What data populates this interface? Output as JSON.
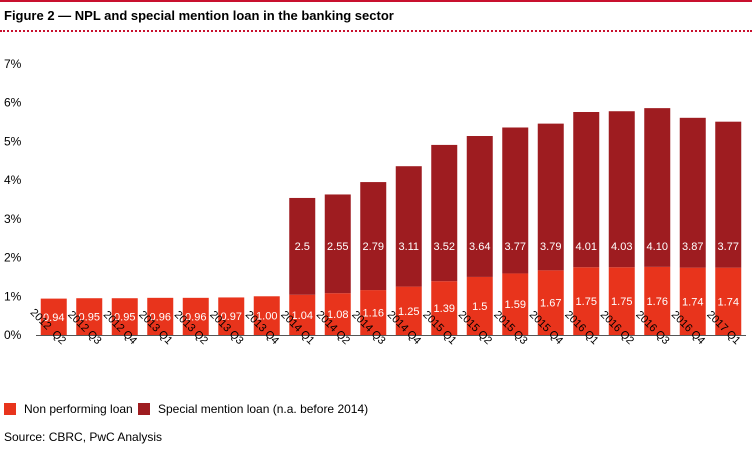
{
  "title": "Figure 2 — NPL and special mention loan in the banking sector",
  "source": "Source: CBRC, PwC Analysis",
  "colors": {
    "npl": "#e8341c",
    "sml": "#9e1c20",
    "accent": "#c8102e"
  },
  "chart_data": {
    "type": "bar",
    "stacked": true,
    "categories": [
      "2012  Q2",
      "2012 Q3",
      "2012 Q4",
      "2013 Q1",
      "2013 Q2",
      "2013 Q3",
      "2013 Q4",
      "2014 Q1",
      "2014 Q2",
      "2014 Q3",
      "2014 Q4",
      "2015 Q1",
      "2015 Q2",
      "2015 Q3",
      "2015 Q4",
      "2016 Q1",
      "2016 Q2",
      "2016 Q3",
      "2016 Q4",
      "2017 Q1"
    ],
    "series": [
      {
        "name": "Non performing loan",
        "values": [
          0.94,
          0.95,
          0.95,
          0.96,
          0.96,
          0.97,
          1.0,
          1.04,
          1.08,
          1.16,
          1.25,
          1.39,
          1.5,
          1.59,
          1.67,
          1.75,
          1.75,
          1.76,
          1.74,
          1.74
        ],
        "labels": [
          "0.94",
          "0.95",
          "0.95",
          "0.96",
          "0.96",
          "0.97",
          "1.00",
          "1.04",
          "1.08",
          "1.16",
          "1.25",
          "1.39",
          "1.5",
          "1.59",
          "1.67",
          "1.75",
          "1.75",
          "1.76",
          "1.74",
          "1.74"
        ]
      },
      {
        "name": "Special mention loan (n.a. before 2014)",
        "values": [
          null,
          null,
          null,
          null,
          null,
          null,
          null,
          2.5,
          2.55,
          2.79,
          3.11,
          3.52,
          3.64,
          3.77,
          3.79,
          4.01,
          4.03,
          4.1,
          3.87,
          3.77
        ],
        "labels": [
          "",
          "",
          "",
          "",
          "",
          "",
          "",
          "2.5",
          "2.55",
          "2.79",
          "3.11",
          "3.52",
          "3.64",
          "3.77",
          "3.79",
          "4.01",
          "4.03",
          "4.10",
          "3.87",
          "3.77"
        ]
      }
    ],
    "ylim": [
      0,
      7
    ],
    "yticks": [
      "0%",
      "1%",
      "2%",
      "3%",
      "4%",
      "5%",
      "6%",
      "7%"
    ],
    "grid": false,
    "legend": "bottom-left"
  }
}
